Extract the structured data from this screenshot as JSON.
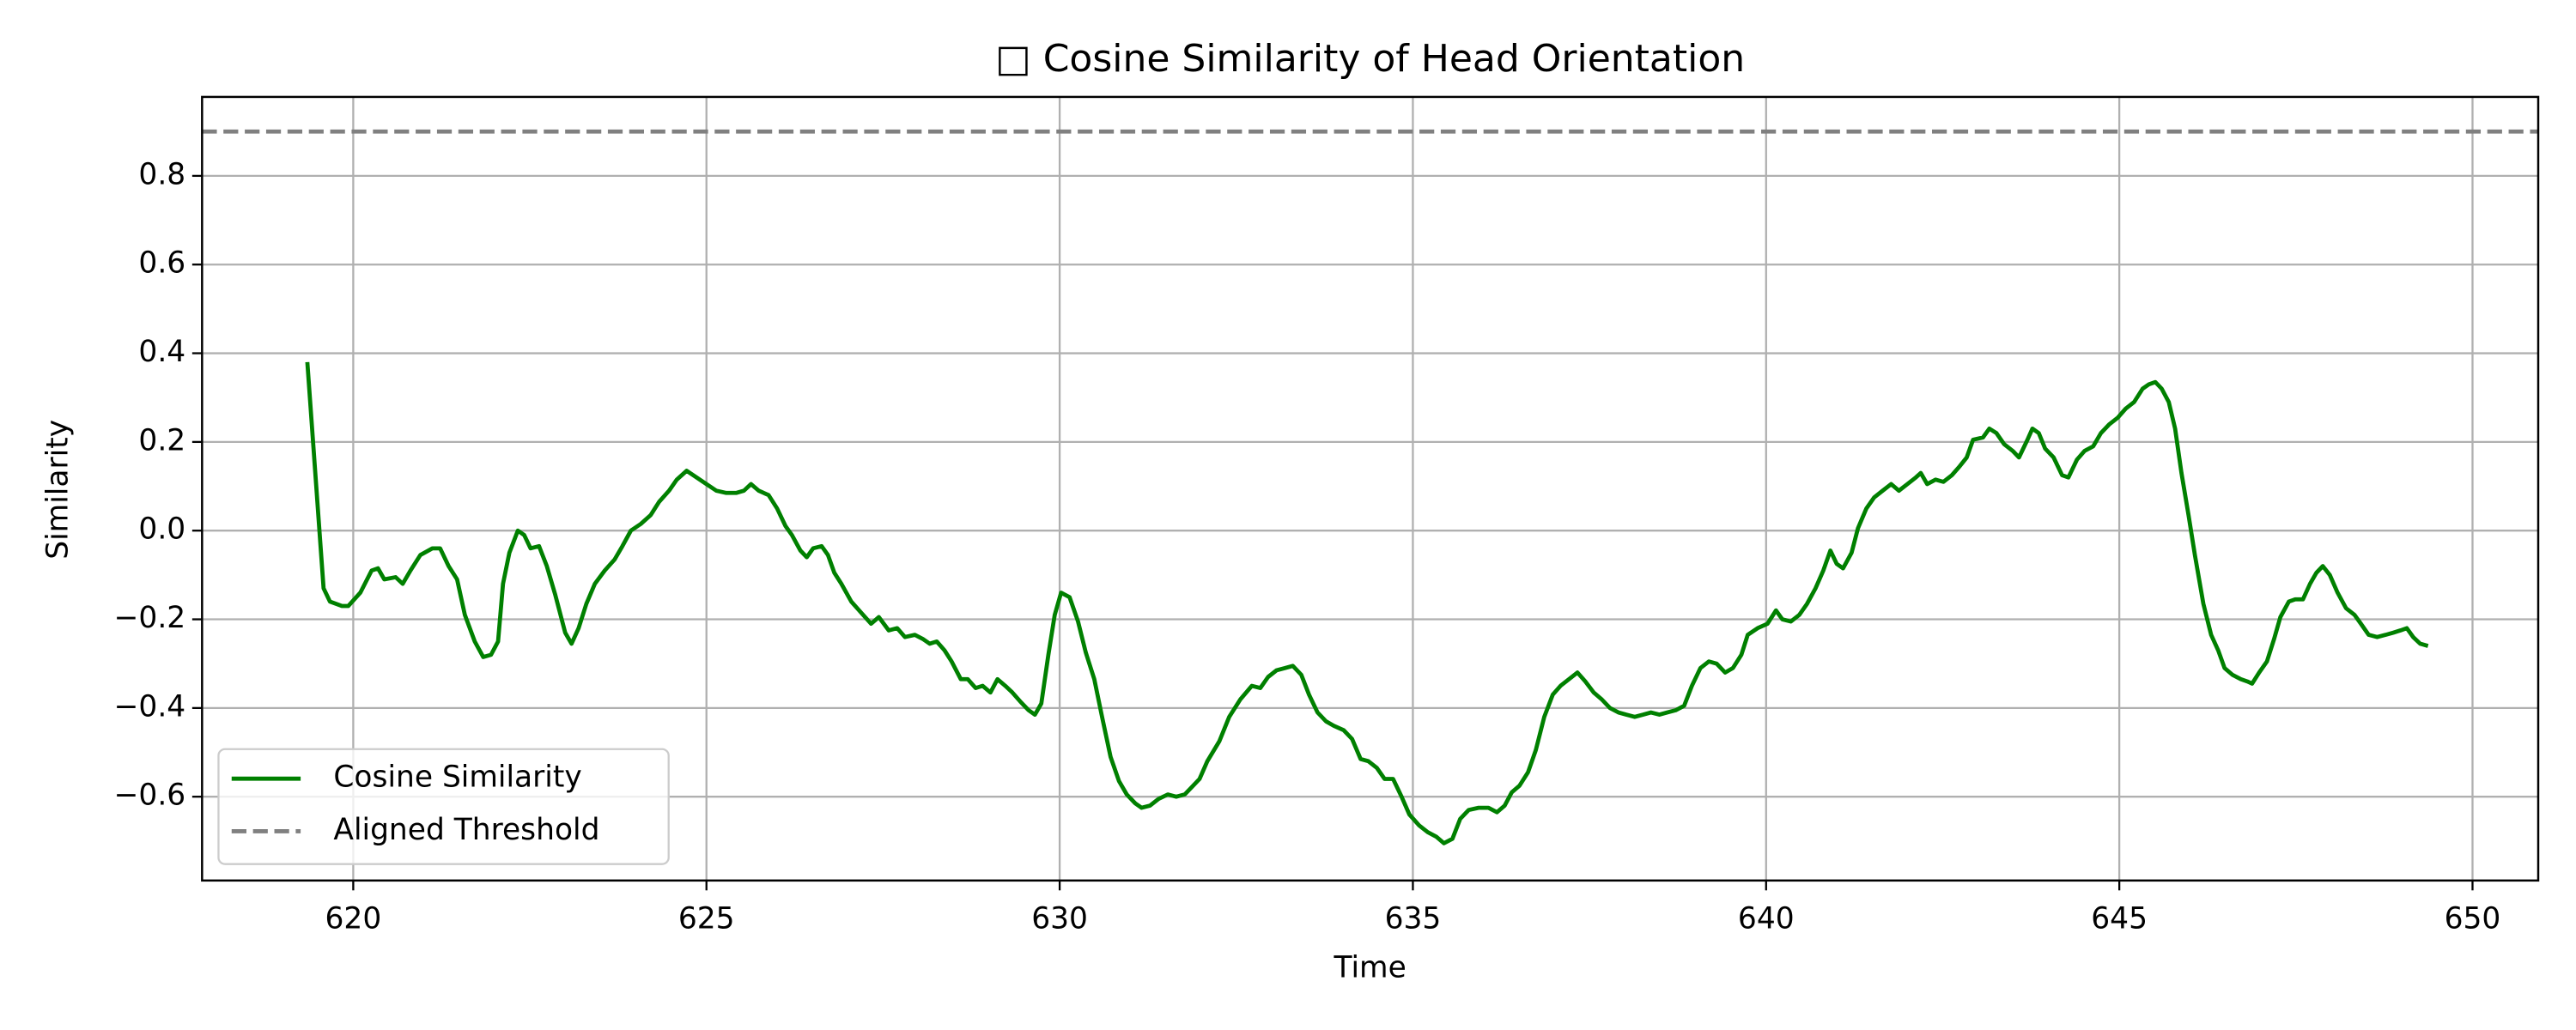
{
  "chart_data": {
    "type": "line",
    "title": "□ Cosine Similarity of Head Orientation",
    "x_label": "Time",
    "y_label": "Similarity",
    "xlim": [
      617.86,
      650.93
    ],
    "ylim": [
      -0.789,
      0.978
    ],
    "xticks": [
      620,
      625,
      630,
      635,
      640,
      645,
      650
    ],
    "yticks": [
      {
        "value": -0.6,
        "label": "−0.6"
      },
      {
        "value": -0.4,
        "label": "−0.4"
      },
      {
        "value": -0.2,
        "label": "−0.2"
      },
      {
        "value": 0,
        "label": "0.0"
      },
      0.2,
      0.4,
      0.6,
      0.8
    ],
    "grid": true,
    "legend": "lower left",
    "threshold": {
      "name": "Aligned Threshold",
      "value": 0.9,
      "color": "#808080"
    },
    "x": [
      619.35,
      619.58,
      619.67,
      619.84,
      619.93,
      620.1,
      620.26,
      620.35,
      620.44,
      620.6,
      620.7,
      620.81,
      620.95,
      621.12,
      621.23,
      621.35,
      621.47,
      621.58,
      621.72,
      621.84,
      621.95,
      622.05,
      622.12,
      622.21,
      622.33,
      622.42,
      622.51,
      622.63,
      622.74,
      622.86,
      623.0,
      623.09,
      623.19,
      623.3,
      623.42,
      623.56,
      623.7,
      623.81,
      623.93,
      624.07,
      624.21,
      624.33,
      624.47,
      624.58,
      624.72,
      624.86,
      625.0,
      625.14,
      625.28,
      625.42,
      625.53,
      625.63,
      625.74,
      625.88,
      626.0,
      626.12,
      626.21,
      626.33,
      626.42,
      626.51,
      626.63,
      626.72,
      626.81,
      626.91,
      627.05,
      627.19,
      627.33,
      627.44,
      627.58,
      627.7,
      627.81,
      627.95,
      628.07,
      628.16,
      628.26,
      628.37,
      628.47,
      628.6,
      628.7,
      628.81,
      628.91,
      629.02,
      629.12,
      629.23,
      629.33,
      629.44,
      629.56,
      629.65,
      629.74,
      629.84,
      629.93,
      630.02,
      630.14,
      630.26,
      630.37,
      630.49,
      630.6,
      630.72,
      630.84,
      630.95,
      631.07,
      631.16,
      631.28,
      631.4,
      631.53,
      631.65,
      631.77,
      631.86,
      631.98,
      632.09,
      632.26,
      632.4,
      632.56,
      632.72,
      632.84,
      632.95,
      633.07,
      633.19,
      633.3,
      633.42,
      633.53,
      633.65,
      633.77,
      633.88,
      634.02,
      634.14,
      634.26,
      634.37,
      634.49,
      634.6,
      634.72,
      634.84,
      634.95,
      635.09,
      635.21,
      635.33,
      635.44,
      635.56,
      635.67,
      635.79,
      635.93,
      636.07,
      636.19,
      636.3,
      636.4,
      636.51,
      636.63,
      636.74,
      636.86,
      636.98,
      637.09,
      637.21,
      637.33,
      637.44,
      637.56,
      637.67,
      637.79,
      637.91,
      638.02,
      638.14,
      638.26,
      638.37,
      638.49,
      638.6,
      638.72,
      638.84,
      638.95,
      639.07,
      639.19,
      639.3,
      639.42,
      639.53,
      639.65,
      639.74,
      639.88,
      640.02,
      640.14,
      640.23,
      640.35,
      640.47,
      640.58,
      640.7,
      640.81,
      640.91,
      641.0,
      641.09,
      641.21,
      641.3,
      641.42,
      641.53,
      641.65,
      641.77,
      641.88,
      642.0,
      642.12,
      642.19,
      642.28,
      642.4,
      642.51,
      642.63,
      642.74,
      642.84,
      642.93,
      643.07,
      643.16,
      643.26,
      643.37,
      643.49,
      643.58,
      643.7,
      643.77,
      643.86,
      643.95,
      644.07,
      644.19,
      644.28,
      644.4,
      644.51,
      644.63,
      644.74,
      644.86,
      644.98,
      645.09,
      645.21,
      645.33,
      645.42,
      645.51,
      645.6,
      645.7,
      645.79,
      645.88,
      645.98,
      646.07,
      646.19,
      646.3,
      646.4,
      646.49,
      646.6,
      646.72,
      646.81,
      646.88,
      646.98,
      647.09,
      647.19,
      647.28,
      647.4,
      647.49,
      647.6,
      647.7,
      647.79,
      647.88,
      647.98,
      648.09,
      648.21,
      648.33,
      648.42,
      648.53,
      648.65,
      648.77,
      648.88,
      648.98,
      649.07,
      649.16,
      649.26,
      649.37
    ],
    "series": [
      {
        "name": "Cosine Similarity",
        "color": "#008000",
        "values": [
          0.38,
          -0.13,
          -0.16,
          -0.17,
          -0.17,
          -0.14,
          -0.09,
          -0.085,
          -0.11,
          -0.105,
          -0.12,
          -0.09,
          -0.055,
          -0.04,
          -0.04,
          -0.08,
          -0.11,
          -0.19,
          -0.25,
          -0.285,
          -0.28,
          -0.25,
          -0.12,
          -0.05,
          0.0,
          -0.01,
          -0.04,
          -0.035,
          -0.08,
          -0.145,
          -0.23,
          -0.255,
          -0.22,
          -0.165,
          -0.12,
          -0.09,
          -0.065,
          -0.035,
          0.0,
          0.015,
          0.035,
          0.065,
          0.09,
          0.115,
          0.135,
          0.12,
          0.105,
          0.09,
          0.085,
          0.085,
          0.09,
          0.105,
          0.09,
          0.08,
          0.05,
          0.01,
          -0.01,
          -0.045,
          -0.06,
          -0.04,
          -0.035,
          -0.055,
          -0.095,
          -0.12,
          -0.16,
          -0.185,
          -0.21,
          -0.195,
          -0.225,
          -0.22,
          -0.24,
          -0.235,
          -0.245,
          -0.255,
          -0.25,
          -0.27,
          -0.295,
          -0.335,
          -0.335,
          -0.355,
          -0.35,
          -0.365,
          -0.335,
          -0.35,
          -0.365,
          -0.385,
          -0.405,
          -0.415,
          -0.39,
          -0.28,
          -0.19,
          -0.14,
          -0.15,
          -0.205,
          -0.275,
          -0.335,
          -0.42,
          -0.51,
          -0.565,
          -0.595,
          -0.615,
          -0.625,
          -0.62,
          -0.605,
          -0.595,
          -0.6,
          -0.595,
          -0.58,
          -0.56,
          -0.52,
          -0.475,
          -0.42,
          -0.38,
          -0.35,
          -0.355,
          -0.33,
          -0.315,
          -0.31,
          -0.305,
          -0.325,
          -0.37,
          -0.41,
          -0.43,
          -0.44,
          -0.45,
          -0.47,
          -0.515,
          -0.52,
          -0.535,
          -0.56,
          -0.56,
          -0.6,
          -0.64,
          -0.665,
          -0.68,
          -0.69,
          -0.705,
          -0.695,
          -0.65,
          -0.63,
          -0.625,
          -0.625,
          -0.635,
          -0.62,
          -0.59,
          -0.575,
          -0.545,
          -0.495,
          -0.42,
          -0.37,
          -0.35,
          -0.335,
          -0.32,
          -0.34,
          -0.365,
          -0.38,
          -0.4,
          -0.41,
          -0.415,
          -0.42,
          -0.415,
          -0.41,
          -0.415,
          -0.41,
          -0.405,
          -0.395,
          -0.35,
          -0.31,
          -0.295,
          -0.3,
          -0.32,
          -0.31,
          -0.28,
          -0.235,
          -0.22,
          -0.21,
          -0.18,
          -0.2,
          -0.205,
          -0.19,
          -0.165,
          -0.13,
          -0.09,
          -0.045,
          -0.075,
          -0.085,
          -0.05,
          0.005,
          0.05,
          0.075,
          0.09,
          0.105,
          0.09,
          0.105,
          0.12,
          0.13,
          0.105,
          0.115,
          0.11,
          0.125,
          0.145,
          0.165,
          0.205,
          0.21,
          0.23,
          0.22,
          0.195,
          0.18,
          0.165,
          0.205,
          0.23,
          0.22,
          0.185,
          0.165,
          0.125,
          0.12,
          0.16,
          0.18,
          0.19,
          0.22,
          0.24,
          0.255,
          0.275,
          0.29,
          0.32,
          0.33,
          0.335,
          0.32,
          0.29,
          0.23,
          0.13,
          0.035,
          -0.055,
          -0.165,
          -0.235,
          -0.27,
          -0.31,
          -0.325,
          -0.335,
          -0.34,
          -0.345,
          -0.32,
          -0.295,
          -0.245,
          -0.195,
          -0.16,
          -0.155,
          -0.155,
          -0.12,
          -0.095,
          -0.08,
          -0.1,
          -0.14,
          -0.175,
          -0.19,
          -0.21,
          -0.235,
          -0.24,
          -0.235,
          -0.23,
          -0.225,
          -0.22,
          -0.24,
          -0.255,
          -0.26
        ]
      }
    ]
  }
}
